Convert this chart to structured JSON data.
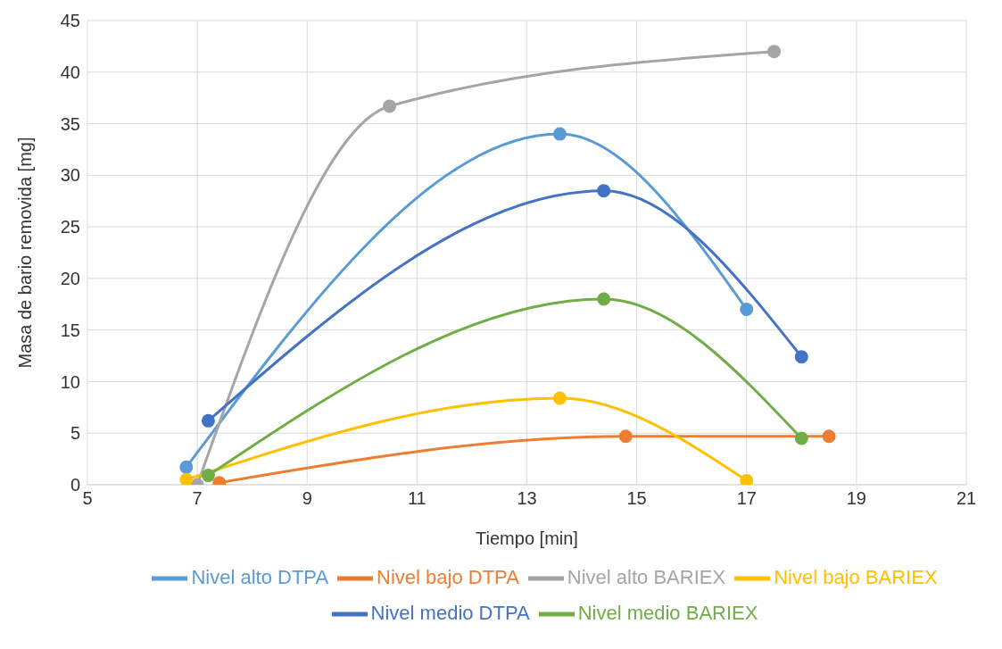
{
  "chart_data": {
    "type": "line",
    "xlabel": "Tiempo [min]",
    "ylabel": "Masa de bario removida [mg]",
    "xlim": [
      5,
      21
    ],
    "xticks": [
      5,
      7,
      9,
      11,
      13,
      15,
      17,
      19,
      21
    ],
    "ylim": [
      0,
      45
    ],
    "yticks": [
      0,
      5,
      10,
      15,
      20,
      25,
      30,
      35,
      40,
      45
    ],
    "grid": true,
    "legend": "bottom",
    "marker": "circle",
    "line_style": "solid",
    "series": [
      {
        "name": "Nivel alto DTPA",
        "color": "#5b9bd5",
        "x": [
          6.8,
          13.6,
          17
        ],
        "values": [
          1.7,
          34,
          17
        ]
      },
      {
        "name": "Nivel bajo DTPA",
        "color": "#ed7d31",
        "x": [
          7.4,
          14.8,
          18.5
        ],
        "values": [
          0.2,
          4.7,
          4.7
        ]
      },
      {
        "name": "Nivel alto BARIEX",
        "color": "#a5a5a5",
        "x": [
          7,
          10.5,
          17.5
        ],
        "values": [
          0,
          36.7,
          42
        ]
      },
      {
        "name": "Nivel bajo BARIEX",
        "color": "#ffc000",
        "x": [
          6.8,
          13.6,
          17
        ],
        "values": [
          0.5,
          8.4,
          0.4
        ]
      },
      {
        "name": "Nivel medio DTPA",
        "color": "#4472c4",
        "x": [
          7.2,
          14.4,
          18
        ],
        "values": [
          6.2,
          28.5,
          12.4
        ]
      },
      {
        "name": "Nivel medio BARIEX",
        "color": "#70ad47",
        "x": [
          7.2,
          14.4,
          18
        ],
        "values": [
          0.9,
          18,
          4.5
        ]
      }
    ]
  }
}
